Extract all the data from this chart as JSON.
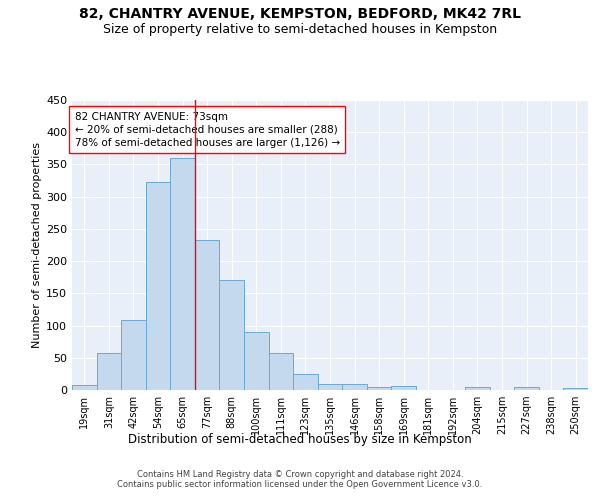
{
  "title": "82, CHANTRY AVENUE, KEMPSTON, BEDFORD, MK42 7RL",
  "subtitle": "Size of property relative to semi-detached houses in Kempston",
  "xlabel": "Distribution of semi-detached houses by size in Kempston",
  "ylabel": "Number of semi-detached properties",
  "bar_color": "#c5d9ee",
  "bar_edge_color": "#6aaad4",
  "categories": [
    "19sqm",
    "31sqm",
    "42sqm",
    "54sqm",
    "65sqm",
    "77sqm",
    "88sqm",
    "100sqm",
    "111sqm",
    "123sqm",
    "135sqm",
    "146sqm",
    "158sqm",
    "169sqm",
    "181sqm",
    "192sqm",
    "204sqm",
    "215sqm",
    "227sqm",
    "238sqm",
    "250sqm"
  ],
  "values": [
    7,
    57,
    108,
    322,
    360,
    233,
    170,
    90,
    57,
    25,
    10,
    10,
    5,
    6,
    0,
    0,
    5,
    0,
    4,
    0,
    3
  ],
  "property_line_x": 4.5,
  "property_line_color": "red",
  "annotation_text": "82 CHANTRY AVENUE: 73sqm\n← 20% of semi-detached houses are smaller (288)\n78% of semi-detached houses are larger (1,126) →",
  "annotation_box_color": "white",
  "annotation_box_edgecolor": "red",
  "ylim": [
    0,
    450
  ],
  "yticks": [
    0,
    50,
    100,
    150,
    200,
    250,
    300,
    350,
    400,
    450
  ],
  "footer_line1": "Contains HM Land Registry data © Crown copyright and database right 2024.",
  "footer_line2": "Contains public sector information licensed under the Open Government Licence v3.0.",
  "bg_color": "#e8eff8",
  "grid_color": "white",
  "title_fontsize": 10,
  "subtitle_fontsize": 9,
  "annotation_fontsize": 7.5
}
